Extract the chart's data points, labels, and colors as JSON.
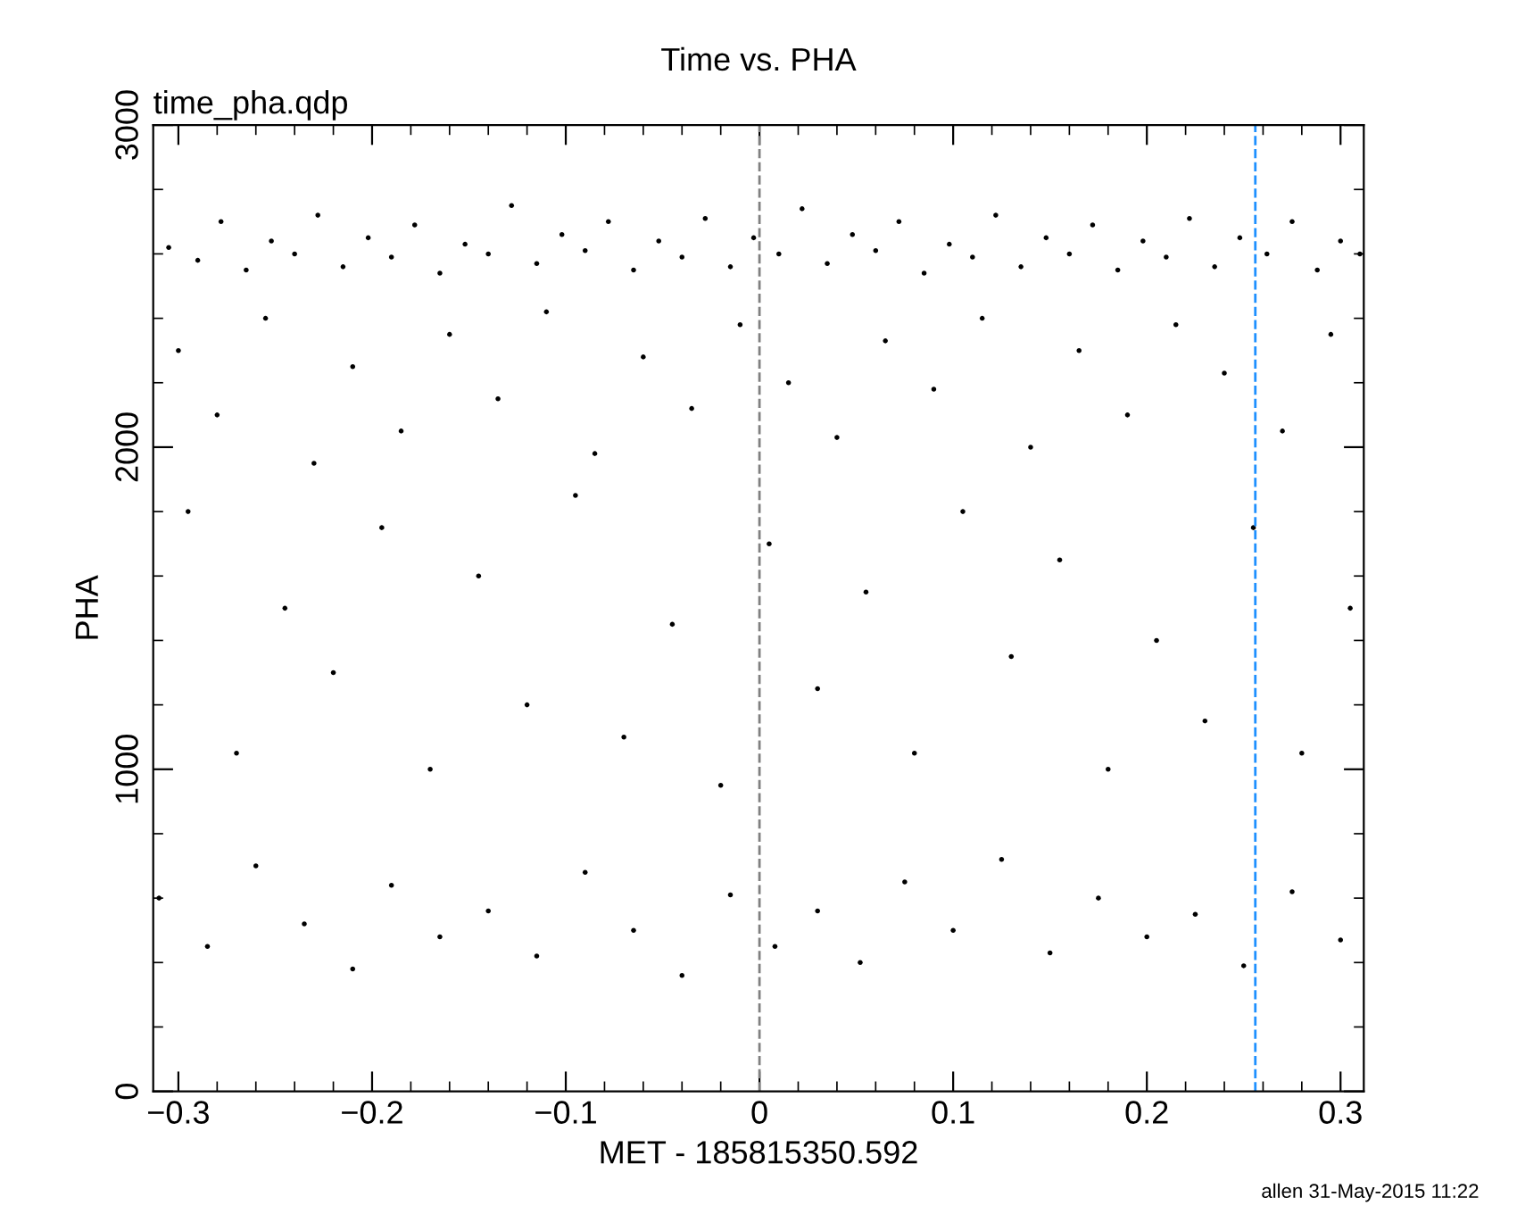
{
  "chart_data": {
    "type": "scatter",
    "title": "Time vs. PHA",
    "xlabel": "MET - 185815350.592",
    "ylabel": "PHA",
    "annotations": [
      "time_pha.qdp",
      "allen 31-May-2015 11:22"
    ],
    "xlim": [
      -0.313,
      0.312
    ],
    "xticks": [
      {
        "value": -0.3,
        "label": "−0.3"
      },
      {
        "value": -0.2,
        "label": "−0.2"
      },
      {
        "value": -0.1,
        "label": "−0.1"
      },
      0,
      0.1,
      0.2,
      0.3
    ],
    "ylim": [
      0,
      3000
    ],
    "yticks": [
      0,
      1000,
      2000,
      3000
    ],
    "marker": "circle",
    "grid": false,
    "legend": false,
    "ref_lines": [
      {
        "axis": "x",
        "value": 0,
        "color": "#808080",
        "line_style": "dashed"
      },
      {
        "axis": "x",
        "value": 0.256,
        "color": "#1e90ff",
        "line_style": "dashed"
      }
    ],
    "series": [
      {
        "color": "#000000",
        "x": [
          -0.305,
          -0.29,
          -0.278,
          -0.265,
          -0.252,
          -0.24,
          -0.228,
          -0.215,
          -0.202,
          -0.19,
          -0.178,
          -0.165,
          -0.152,
          -0.14,
          -0.128,
          -0.115,
          -0.102,
          -0.09,
          -0.078,
          -0.065,
          -0.052,
          -0.04,
          -0.028,
          -0.015,
          -0.003,
          0.01,
          0.022,
          0.035,
          0.048,
          0.06,
          0.072,
          0.085,
          0.098,
          0.11,
          0.122,
          0.135,
          0.148,
          0.16,
          0.172,
          0.185,
          0.198,
          0.21,
          0.222,
          0.235,
          0.248,
          0.262,
          0.275,
          0.288,
          0.3,
          0.31,
          -0.3,
          -0.28,
          -0.255,
          -0.23,
          -0.21,
          -0.185,
          -0.16,
          -0.135,
          -0.11,
          -0.085,
          -0.06,
          -0.035,
          -0.01,
          0.015,
          0.04,
          0.065,
          0.09,
          0.115,
          0.14,
          0.165,
          0.19,
          0.215,
          0.24,
          0.27,
          0.295,
          -0.295,
          -0.27,
          -0.245,
          -0.22,
          -0.195,
          -0.17,
          -0.145,
          -0.12,
          -0.095,
          -0.07,
          -0.045,
          -0.02,
          0.005,
          0.03,
          0.055,
          0.08,
          0.105,
          0.13,
          0.155,
          0.18,
          0.205,
          0.23,
          0.255,
          0.28,
          0.305,
          -0.31,
          -0.285,
          -0.26,
          -0.235,
          -0.21,
          -0.19,
          -0.165,
          -0.14,
          -0.115,
          -0.09,
          -0.065,
          -0.04,
          -0.015,
          0.008,
          0.03,
          0.052,
          0.075,
          0.1,
          0.125,
          0.15,
          0.175,
          0.2,
          0.225,
          0.25,
          0.275,
          0.3
        ],
        "values": [
          2620,
          2580,
          2700,
          2550,
          2640,
          2600,
          2720,
          2560,
          2650,
          2590,
          2690,
          2540,
          2630,
          2600,
          2750,
          2570,
          2660,
          2610,
          2700,
          2550,
          2640,
          2590,
          2710,
          2560,
          2650,
          2600,
          2740,
          2570,
          2660,
          2610,
          2700,
          2540,
          2630,
          2590,
          2720,
          2560,
          2650,
          2600,
          2690,
          2550,
          2640,
          2590,
          2710,
          2560,
          2650,
          2600,
          2700,
          2550,
          2640,
          2600,
          2300,
          2100,
          2400,
          1950,
          2250,
          2050,
          2350,
          2150,
          2420,
          1980,
          2280,
          2120,
          2380,
          2200,
          2030,
          2330,
          2180,
          2400,
          2000,
          2300,
          2100,
          2380,
          2230,
          2050,
          2350,
          1800,
          1050,
          1500,
          1300,
          1750,
          1000,
          1600,
          1200,
          1850,
          1100,
          1450,
          950,
          1700,
          1250,
          1550,
          1050,
          1800,
          1350,
          1650,
          1000,
          1400,
          1150,
          1750,
          1050,
          1500,
          600,
          450,
          700,
          520,
          380,
          640,
          480,
          560,
          420,
          680,
          500,
          360,
          610,
          450,
          560,
          400,
          650,
          500,
          720,
          430,
          600,
          480,
          550,
          390,
          620,
          470
        ]
      }
    ]
  }
}
